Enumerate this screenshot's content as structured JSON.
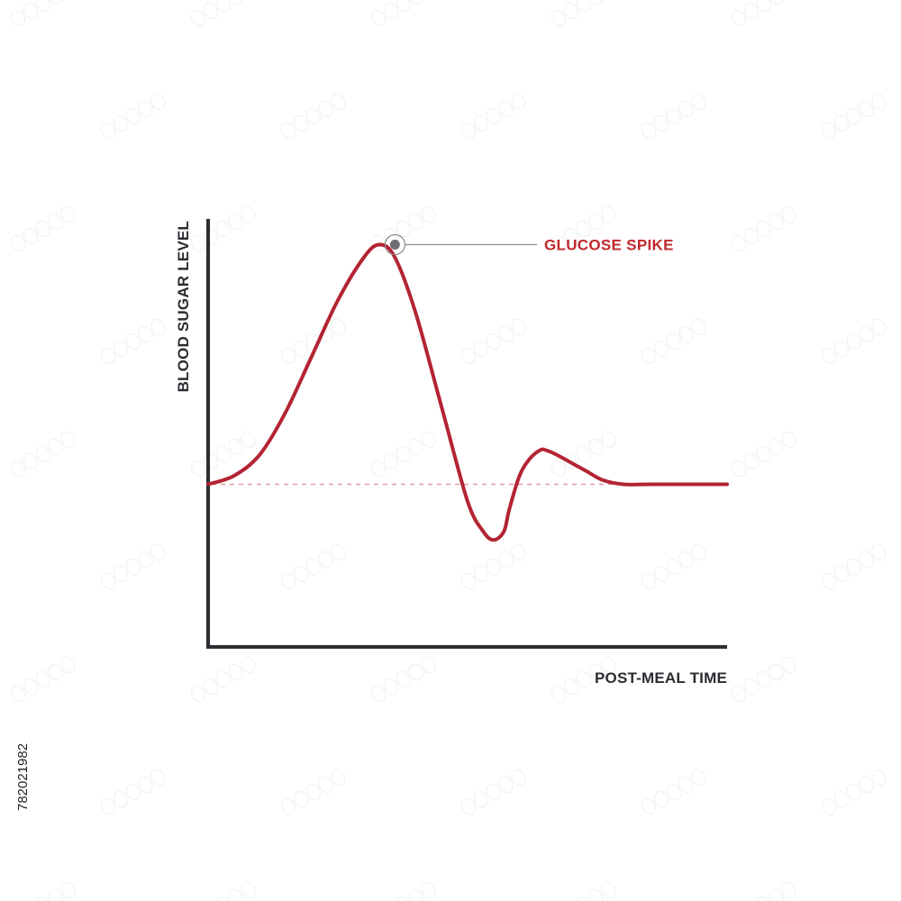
{
  "colors": {
    "curve": "#b32433",
    "baseline": "#e79aa3",
    "axis": "#2b2d33",
    "annotation_text": "#c0272d",
    "leader": "#8a8a8a",
    "marker_fill": "#6e6e72"
  },
  "watermark": {
    "id": "782021982"
  },
  "chart_data": {
    "type": "line",
    "title": "",
    "xlabel": "POST-MEAL TIME",
    "ylabel": "BLOOD SUGAR LEVEL",
    "x_ticks": false,
    "y_ticks": false,
    "grid": false,
    "xlim": [
      0,
      100
    ],
    "ylim": [
      0,
      100
    ],
    "baseline": {
      "y": 38,
      "style": "dashed"
    },
    "series": [
      {
        "x": [
          0,
          5,
          10,
          15,
          20,
          25,
          30,
          33,
          36,
          40,
          45,
          50,
          53,
          55,
          57,
          58,
          60,
          62,
          64,
          65,
          67,
          70,
          73,
          76,
          80,
          85,
          90,
          95,
          100
        ],
        "y": [
          38,
          40,
          45,
          55,
          68,
          81,
          91,
          94,
          91,
          78,
          56,
          34,
          27,
          25,
          27,
          32,
          40,
          44,
          46,
          46,
          45,
          43,
          41,
          39,
          38,
          38,
          38,
          38,
          38
        ]
      }
    ],
    "annotations": [
      {
        "text": "GLUCOSE SPIKE",
        "x": 36,
        "y": 94
      }
    ]
  }
}
